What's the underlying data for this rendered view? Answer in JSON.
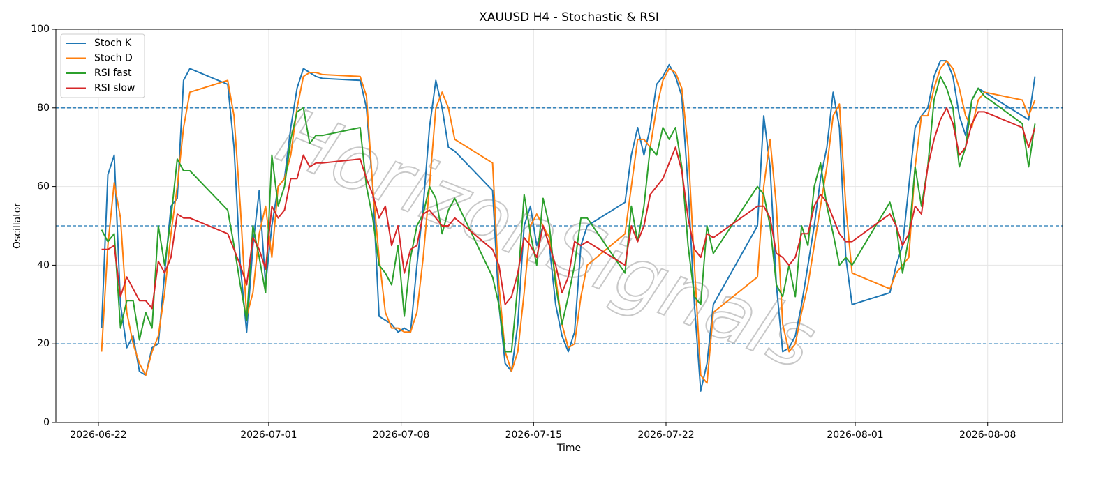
{
  "chart_data": {
    "type": "line",
    "title": "XAUUSD H4 - Stochastic & RSI",
    "xlabel": "Time",
    "ylabel": "Oscillator",
    "watermark": "HorizonSignals",
    "x": [
      "2026-06-22 04:00",
      "2026-06-22 12:00",
      "2026-06-22 20:00",
      "2026-06-23 04:00",
      "2026-06-23 12:00",
      "2026-06-23 20:00",
      "2026-06-24 04:00",
      "2026-06-24 12:00",
      "2026-06-24 20:00",
      "2026-06-25 04:00",
      "2026-06-25 12:00",
      "2026-06-25 20:00",
      "2026-06-26 04:00",
      "2026-06-26 12:00",
      "2026-06-26 20:00",
      "2026-06-28 20:00",
      "2026-06-29 04:00",
      "2026-06-29 12:00",
      "2026-06-29 20:00",
      "2026-06-30 04:00",
      "2026-06-30 12:00",
      "2026-06-30 20:00",
      "2026-07-01 04:00",
      "2026-07-01 12:00",
      "2026-07-01 20:00",
      "2026-07-02 04:00",
      "2026-07-02 12:00",
      "2026-07-02 20:00",
      "2026-07-03 04:00",
      "2026-07-03 12:00",
      "2026-07-03 20:00",
      "2026-07-05 20:00",
      "2026-07-06 04:00",
      "2026-07-06 12:00",
      "2026-07-06 20:00",
      "2026-07-07 04:00",
      "2026-07-07 12:00",
      "2026-07-07 20:00",
      "2026-07-08 04:00",
      "2026-07-08 12:00",
      "2026-07-08 20:00",
      "2026-07-09 04:00",
      "2026-07-09 12:00",
      "2026-07-09 20:00",
      "2026-07-10 04:00",
      "2026-07-10 12:00",
      "2026-07-10 20:00",
      "2026-07-12 20:00",
      "2026-07-13 04:00",
      "2026-07-13 12:00",
      "2026-07-13 20:00",
      "2026-07-14 04:00",
      "2026-07-14 12:00",
      "2026-07-14 20:00",
      "2026-07-15 04:00",
      "2026-07-15 12:00",
      "2026-07-15 20:00",
      "2026-07-16 04:00",
      "2026-07-16 12:00",
      "2026-07-16 20:00",
      "2026-07-17 04:00",
      "2026-07-17 12:00",
      "2026-07-17 20:00",
      "2026-07-19 20:00",
      "2026-07-20 04:00",
      "2026-07-20 12:00",
      "2026-07-20 20:00",
      "2026-07-21 04:00",
      "2026-07-21 12:00",
      "2026-07-21 20:00",
      "2026-07-22 04:00",
      "2026-07-22 12:00",
      "2026-07-22 20:00",
      "2026-07-23 04:00",
      "2026-07-23 12:00",
      "2026-07-23 20:00",
      "2026-07-24 04:00",
      "2026-07-24 12:00",
      "2026-07-26 20:00",
      "2026-07-27 04:00",
      "2026-07-27 12:00",
      "2026-07-27 20:00",
      "2026-07-28 04:00",
      "2026-07-28 12:00",
      "2026-07-28 20:00",
      "2026-07-29 04:00",
      "2026-07-29 12:00",
      "2026-07-29 20:00",
      "2026-07-30 04:00",
      "2026-07-30 12:00",
      "2026-07-30 20:00",
      "2026-07-31 04:00",
      "2026-07-31 12:00",
      "2026-07-31 20:00",
      "2026-08-02 20:00",
      "2026-08-03 04:00",
      "2026-08-03 12:00",
      "2026-08-03 20:00",
      "2026-08-04 04:00",
      "2026-08-04 12:00",
      "2026-08-04 20:00",
      "2026-08-05 04:00",
      "2026-08-05 12:00",
      "2026-08-05 20:00",
      "2026-08-06 04:00",
      "2026-08-06 12:00",
      "2026-08-06 20:00",
      "2026-08-07 04:00",
      "2026-08-07 12:00",
      "2026-08-07 20:00",
      "2026-08-09 20:00",
      "2026-08-10 04:00",
      "2026-08-10 12:00"
    ],
    "series": [
      {
        "name": "Stoch K",
        "color": "#1f77b4",
        "values": [
          24,
          63,
          68,
          30,
          19,
          22,
          13,
          12,
          19,
          20,
          38,
          55,
          57,
          87,
          90,
          86,
          70,
          40,
          23,
          45,
          59,
          35,
          50,
          60,
          62,
          75,
          85,
          90,
          89,
          88,
          87.5,
          87,
          80,
          60,
          27,
          26,
          25,
          23,
          24,
          23,
          40,
          55,
          75,
          87,
          80,
          70,
          69,
          59,
          30,
          15,
          13,
          25,
          50,
          55,
          45,
          50,
          45,
          30,
          22,
          18,
          23,
          45,
          50,
          56,
          68,
          75,
          68,
          75,
          86,
          88,
          91,
          88,
          83,
          60,
          30,
          8,
          15,
          30,
          50,
          78,
          65,
          35,
          18,
          19,
          22,
          30,
          40,
          50,
          62,
          70,
          84,
          75,
          42,
          30,
          33,
          40,
          45,
          60,
          75,
          78,
          80,
          88,
          92,
          92,
          88,
          78,
          73,
          82,
          85,
          84,
          78,
          77,
          88
        ]
      },
      {
        "name": "Stoch D",
        "color": "#ff7f0e",
        "values": [
          18,
          45,
          61,
          52,
          28,
          20,
          15,
          12,
          18,
          22,
          33,
          48,
          60,
          75,
          84,
          87,
          78,
          55,
          27,
          33,
          48,
          55,
          42,
          60,
          62,
          68,
          80,
          88,
          89,
          89,
          88.5,
          88,
          83,
          60,
          42,
          28,
          24,
          24,
          23,
          23,
          28,
          42,
          60,
          80,
          84,
          80,
          72,
          66,
          35,
          18,
          13,
          18,
          33,
          50,
          53,
          50,
          47,
          37,
          25,
          19,
          20,
          32,
          40,
          48,
          60,
          72,
          72,
          70,
          80,
          87,
          90,
          89,
          85,
          70,
          40,
          12,
          10,
          28,
          37,
          60,
          72,
          55,
          25,
          18,
          20,
          28,
          35,
          45,
          55,
          65,
          78,
          81,
          55,
          38,
          34,
          38,
          40,
          42,
          65,
          78,
          78,
          85,
          90,
          92,
          90,
          85,
          78,
          75,
          82,
          84,
          82,
          78,
          82
        ]
      },
      {
        "name": "RSI fast",
        "color": "#2ca02c",
        "values": [
          49,
          46,
          48,
          24,
          31,
          31,
          21,
          28,
          24,
          50,
          40,
          52,
          67,
          64,
          64,
          54,
          45,
          35,
          26,
          50,
          42,
          33,
          68,
          55,
          60,
          72,
          79,
          80,
          71,
          73,
          73,
          75,
          60,
          52,
          40,
          38,
          35,
          45,
          27,
          42,
          50,
          53,
          60,
          57,
          48,
          54,
          57,
          37,
          30,
          18,
          18,
          35,
          58,
          48,
          40,
          57,
          50,
          35,
          25,
          32,
          40,
          52,
          52,
          38,
          55,
          46,
          55,
          70,
          68,
          75,
          72,
          75,
          65,
          45,
          32,
          30,
          50,
          43,
          60,
          58,
          50,
          35,
          32,
          40,
          32,
          50,
          45,
          60,
          66,
          55,
          48,
          40,
          42,
          40,
          56,
          50,
          38,
          47,
          65,
          55,
          65,
          82,
          88,
          85,
          80,
          65,
          70,
          82,
          85,
          83,
          76,
          65,
          76
        ]
      },
      {
        "name": "RSI slow",
        "color": "#d62728",
        "values": [
          44,
          44,
          45,
          32,
          37,
          34,
          31,
          31,
          29,
          41,
          38,
          42,
          53,
          52,
          52,
          48,
          44,
          40,
          35,
          47,
          44,
          39,
          55,
          52,
          54,
          62,
          62,
          68,
          65,
          66,
          66,
          67,
          62,
          58,
          52,
          55,
          45,
          50,
          38,
          44,
          45,
          53,
          54,
          52,
          50,
          50,
          52,
          44,
          40,
          30,
          32,
          38,
          47,
          45,
          42,
          50,
          45,
          40,
          33,
          37,
          46,
          45,
          46,
          40,
          50,
          46,
          50,
          58,
          60,
          62,
          66,
          70,
          64,
          52,
          44,
          42,
          48,
          47,
          55,
          55,
          52,
          43,
          42,
          40,
          42,
          48,
          48,
          55,
          58,
          56,
          52,
          48,
          46,
          46,
          53,
          50,
          45,
          48,
          55,
          53,
          65,
          72,
          77,
          80,
          76,
          68,
          70,
          76,
          79,
          79,
          75,
          70,
          75
        ]
      }
    ],
    "xlim": [
      "2026-06-19 18:00",
      "2026-08-11 23:00"
    ],
    "xticks": [
      "2026-06-22",
      "2026-07-01",
      "2026-07-08",
      "2026-07-15",
      "2026-07-22",
      "2026-08-01",
      "2026-08-08"
    ],
    "ylim": [
      0,
      100
    ],
    "yticks": [
      0,
      20,
      40,
      60,
      80,
      100
    ],
    "levels": [
      20,
      50,
      80
    ],
    "level_color": "#1f77b4",
    "grid": true,
    "legend": "upper left"
  }
}
